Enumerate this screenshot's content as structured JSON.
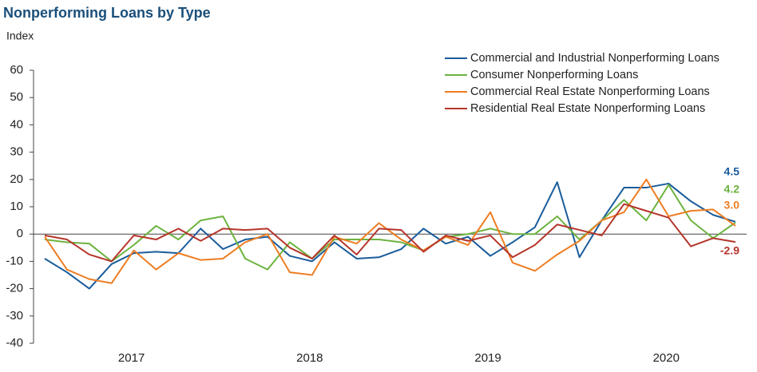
{
  "chart_data": {
    "type": "line",
    "title": "Nonperforming Loans by Type",
    "y_label": "Index",
    "categories": [
      null,
      null,
      null,
      null,
      "2017",
      null,
      null,
      null,
      null,
      null,
      null,
      null,
      "2018",
      null,
      null,
      null,
      null,
      null,
      null,
      null,
      "2019",
      null,
      null,
      null,
      null,
      null,
      null,
      null,
      "2020",
      null,
      null,
      null
    ],
    "ylim": [
      -40,
      60
    ],
    "yticks": [
      -40,
      -30,
      -20,
      -10,
      0,
      10,
      20,
      30,
      40,
      50,
      60
    ],
    "legend": "top-right",
    "series": [
      {
        "name": "Commercial and Industrial Nonperforming Loans",
        "color": "#1a5c9c",
        "values": [
          -9,
          -14,
          -20,
          -11,
          -7,
          -6.5,
          -7,
          2,
          -5.5,
          -2,
          -1,
          -8,
          -10,
          -3,
          -9,
          -8.5,
          -5.5,
          2,
          -3.5,
          -1,
          -8,
          -3,
          2.5,
          19,
          -8.5,
          5,
          17,
          17,
          18.5,
          12,
          7,
          4.5
        ],
        "value_labels": [
          null,
          null,
          null,
          null,
          null,
          null,
          null,
          null,
          null,
          null,
          null,
          null,
          null,
          null,
          null,
          null,
          null,
          null,
          null,
          null,
          null,
          null,
          null,
          null,
          null,
          null,
          null,
          null,
          null,
          null,
          null,
          "4.5"
        ]
      },
      {
        "name": "Consumer Nonperforming Loans",
        "color": "#6cb33f",
        "values": [
          -2,
          -3,
          -3.5,
          -10,
          -4,
          3,
          -2,
          5,
          6.5,
          -9,
          -13,
          -3,
          -9,
          -2,
          -2,
          -2,
          -3,
          -6,
          -1,
          0,
          2,
          0,
          0,
          6.5,
          -2,
          5,
          12.5,
          5,
          18,
          5,
          -1.5,
          4.2
        ],
        "value_labels": [
          null,
          null,
          null,
          null,
          null,
          null,
          null,
          null,
          null,
          null,
          null,
          null,
          null,
          null,
          null,
          null,
          null,
          null,
          null,
          null,
          null,
          null,
          null,
          null,
          null,
          null,
          null,
          null,
          null,
          null,
          null,
          "4.2"
        ]
      },
      {
        "name": "Commercial Real Estate Nonperforming Loans",
        "color": "#ee7d22",
        "values": [
          -1,
          -13,
          -16.5,
          -18,
          -6,
          -13,
          -7,
          -9.5,
          -9,
          -3,
          0,
          -14,
          -15,
          -1,
          -3.5,
          4,
          -2,
          -6,
          -1,
          -4,
          8,
          -10.5,
          -13.5,
          -7.5,
          -2.5,
          5,
          8,
          20,
          6.5,
          8.5,
          9,
          3
        ],
        "value_labels": [
          null,
          null,
          null,
          null,
          null,
          null,
          null,
          null,
          null,
          null,
          null,
          null,
          null,
          null,
          null,
          null,
          null,
          null,
          null,
          null,
          null,
          null,
          null,
          null,
          null,
          null,
          null,
          null,
          null,
          null,
          null,
          "3.0"
        ]
      },
      {
        "name": "Residential Real Estate Nonperforming Loans",
        "color": "#b5352b",
        "values": [
          -0.5,
          -2,
          -7.5,
          -10,
          -0.5,
          -2,
          2,
          -2.5,
          2,
          1.5,
          2,
          -5,
          -9,
          -0.5,
          -7.5,
          2,
          1.5,
          -6.5,
          -0.5,
          -2.5,
          -0.5,
          -8.5,
          -4,
          3.5,
          1.5,
          -0.5,
          11,
          8.5,
          6,
          -4.5,
          -1.5,
          -2.9
        ],
        "value_labels": [
          null,
          null,
          null,
          null,
          null,
          null,
          null,
          null,
          null,
          null,
          null,
          null,
          null,
          null,
          null,
          null,
          null,
          null,
          null,
          null,
          null,
          null,
          null,
          null,
          null,
          null,
          null,
          null,
          null,
          null,
          null,
          "-2.9"
        ]
      }
    ]
  }
}
